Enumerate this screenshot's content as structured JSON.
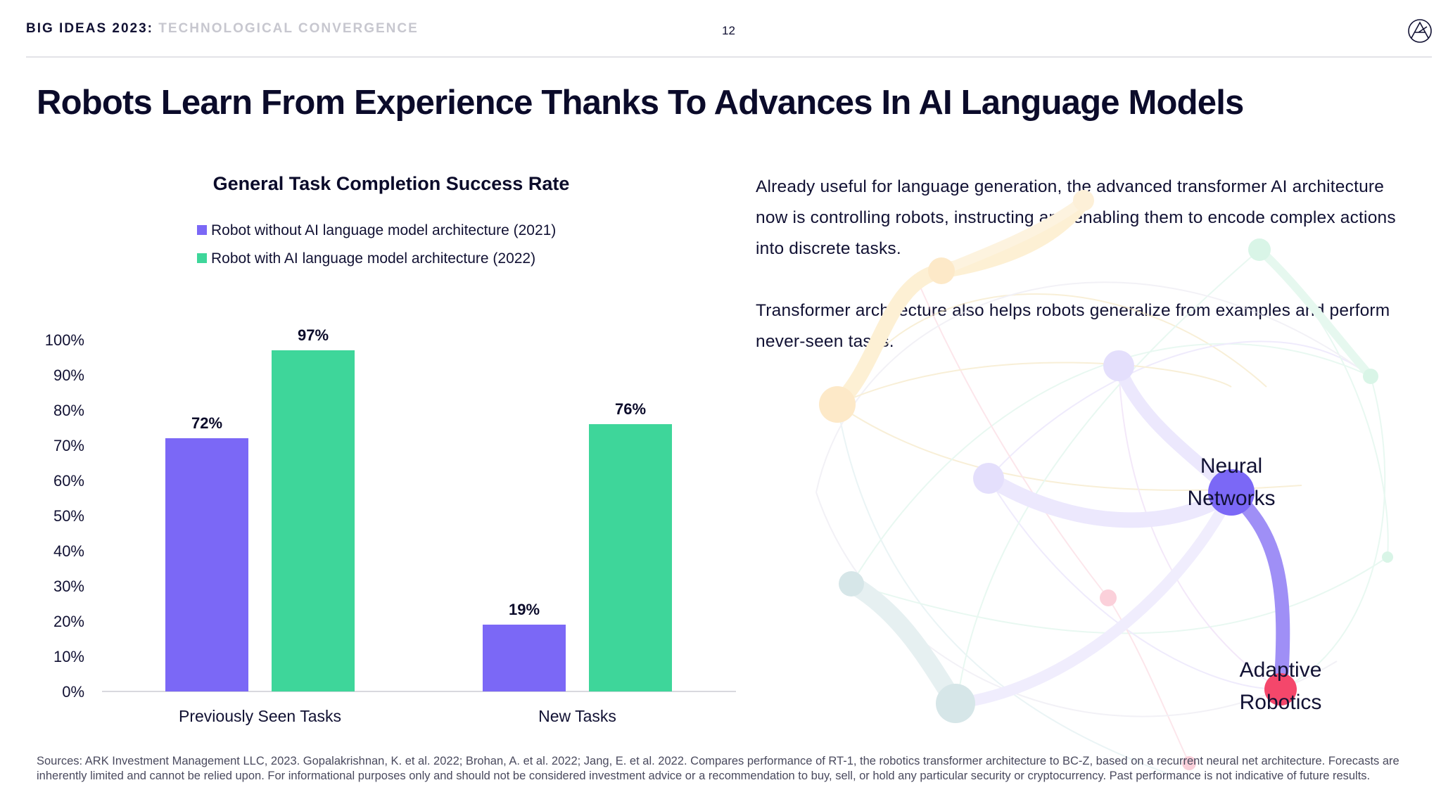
{
  "header": {
    "brand": "BIG IDEAS 2023",
    "separator": ":",
    "subtitle": "TECHNOLOGICAL CONVERGENCE",
    "page_number": "12"
  },
  "title": "Robots Learn From Experience Thanks To Advances In AI Language Models",
  "chart_data": {
    "type": "bar",
    "title": "General Task Completion Success Rate",
    "categories": [
      "Previously Seen Tasks",
      "New Tasks"
    ],
    "series": [
      {
        "name": "Robot without AI language model architecture (2021)",
        "color": "#7B68F6",
        "values": [
          72,
          19
        ],
        "labels": [
          "72%",
          "19%"
        ]
      },
      {
        "name": "Robot with AI language model architecture (2022)",
        "color": "#3ED69A",
        "values": [
          97,
          76
        ],
        "labels": [
          "97%",
          "76%"
        ]
      }
    ],
    "ylim": [
      0,
      100
    ],
    "yticks": [
      "0%",
      "10%",
      "20%",
      "30%",
      "40%",
      "50%",
      "60%",
      "70%",
      "80%",
      "90%",
      "100%"
    ],
    "xlabel": "",
    "ylabel": "",
    "grid": false,
    "legend": "top"
  },
  "body": {
    "paragraph1": "Already useful for language generation, the advanced transformer AI architecture now is controlling robots, instructing and enabling them to encode complex actions into discrete tasks.",
    "paragraph2": "Transformer architecture also helps robots generalize from examples and perform never-seen tasks."
  },
  "network": {
    "node1": {
      "line1": "Neural",
      "line2": "Networks"
    },
    "node2": {
      "line1": "Adaptive",
      "line2": "Robotics"
    }
  },
  "footer": "Sources: ARK Investment Management LLC, 2023. Gopalakrishnan, K. et al. 2022; Brohan, A. et al. 2022; Jang, E. et al. 2022. Compares performance of RT-1, the robotics transformer architecture to BC-Z, based on a recurrent neural net architecture. Forecasts are inherently limited and cannot be relied upon. For informational purposes only and should not be considered investment advice or a recommendation to buy, sell, or hold any particular security or cryptocurrency. Past performance is not indicative of future results."
}
